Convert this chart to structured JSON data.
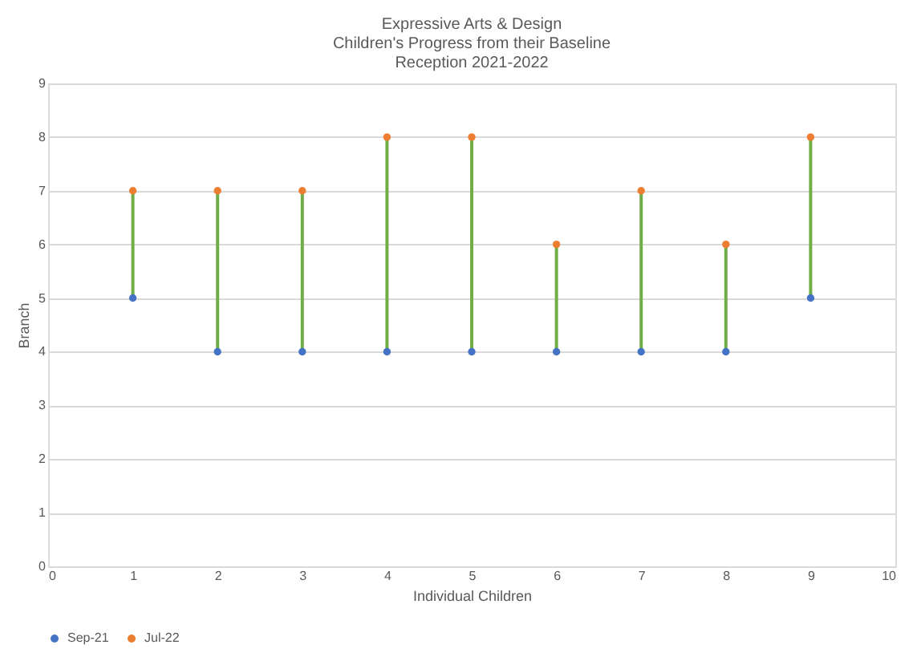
{
  "chart_data": {
    "type": "scatter",
    "title": "Expressive Arts & Design",
    "subtitle": "Children's Progress from their Baseline\nReception 2021-2022",
    "xlabel": "Individual Children",
    "ylabel": "Branch",
    "x": [
      1,
      2,
      3,
      4,
      5,
      6,
      7,
      8,
      9
    ],
    "series": [
      {
        "type": "line",
        "marker": "none",
        "color": "#70ad47",
        "x": [
          1,
          1,
          null,
          2,
          2,
          null,
          3,
          3,
          null,
          4,
          4,
          null,
          5,
          5,
          null,
          6,
          6,
          null,
          7,
          7,
          null,
          8,
          8,
          null,
          9,
          9
        ],
        "values": [
          5,
          7,
          null,
          4,
          7,
          null,
          4,
          7,
          null,
          4,
          8,
          null,
          4,
          8,
          null,
          4,
          6,
          null,
          4,
          7,
          null,
          4,
          6,
          null,
          5,
          8
        ]
      },
      {
        "name": "Sep-21",
        "color": "#4472c4",
        "values": [
          5,
          4,
          4,
          4,
          4,
          4,
          4,
          4,
          5
        ]
      },
      {
        "name": "Jul-22",
        "color": "#ed7d31",
        "values": [
          7,
          7,
          7,
          8,
          8,
          6,
          7,
          6,
          8
        ]
      }
    ],
    "xlim": [
      0,
      10
    ],
    "xticks": [
      0,
      1,
      2,
      3,
      4,
      5,
      6,
      7,
      8,
      9,
      10
    ],
    "ylim": [
      0,
      9
    ],
    "yticks": [
      0,
      1,
      2,
      3,
      4,
      5,
      6,
      7,
      8,
      9
    ],
    "grid": "y",
    "legend": "bottom",
    "marker": "circle"
  }
}
